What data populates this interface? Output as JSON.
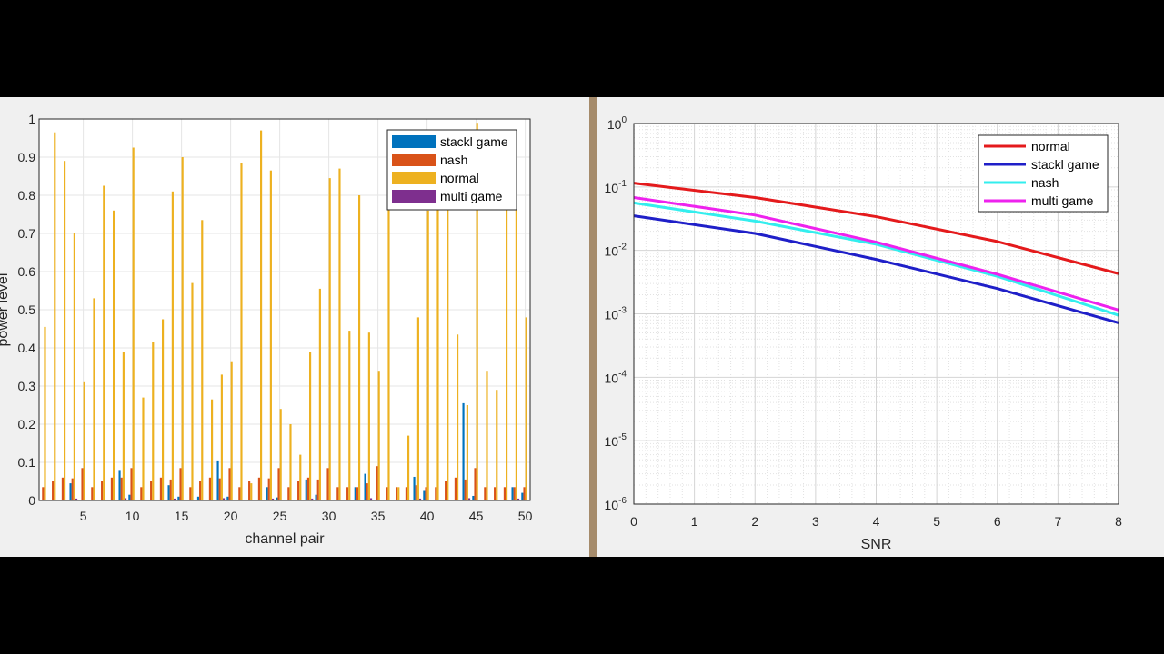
{
  "chart_data": [
    {
      "type": "bar",
      "xlabel": "channel pair",
      "ylabel": "power level",
      "ylim": [
        0,
        1
      ],
      "xlim": [
        0.5,
        50.5
      ],
      "xticks": [
        "5",
        "10",
        "15",
        "20",
        "25",
        "30",
        "35",
        "40",
        "45",
        "50"
      ],
      "yticks": [
        "0",
        "0.1",
        "0.2",
        "0.3",
        "0.4",
        "0.5",
        "0.6",
        "0.7",
        "0.8",
        "0.9",
        "1"
      ],
      "grid": true,
      "legend_position": "top-right",
      "categories": [
        1,
        2,
        3,
        4,
        5,
        6,
        7,
        8,
        9,
        10,
        11,
        12,
        13,
        14,
        15,
        16,
        17,
        18,
        19,
        20,
        21,
        22,
        23,
        24,
        25,
        26,
        27,
        28,
        29,
        30,
        31,
        32,
        33,
        34,
        35,
        36,
        37,
        38,
        39,
        40,
        41,
        42,
        43,
        44,
        45,
        46,
        47,
        48,
        49,
        50
      ],
      "series": [
        {
          "name": "stackl game",
          "color": "#0072BD",
          "values": [
            0,
            0,
            0,
            0.045,
            0,
            0,
            0,
            0,
            0.08,
            0.015,
            0,
            0,
            0,
            0.04,
            0.01,
            0,
            0.01,
            0,
            0.105,
            0.01,
            0,
            0,
            0,
            0.035,
            0.008,
            0,
            0,
            0.055,
            0.015,
            0,
            0,
            0,
            0.035,
            0.07,
            0,
            0,
            0,
            0,
            0.062,
            0.025,
            0,
            0,
            0,
            0.255,
            0.012,
            0,
            0,
            0,
            0.035,
            0.02
          ]
        },
        {
          "name": "nash",
          "color": "#D95319",
          "values": [
            0.035,
            0.05,
            0.06,
            0.058,
            0.085,
            0.035,
            0.05,
            0.06,
            0.06,
            0.085,
            0.035,
            0.05,
            0.06,
            0.055,
            0.085,
            0.035,
            0.05,
            0.06,
            0.058,
            0.085,
            0.035,
            0.05,
            0.06,
            0.058,
            0.085,
            0.035,
            0.05,
            0.06,
            0.055,
            0.085,
            0.035,
            0.035,
            0.035,
            0.045,
            0.09,
            0.035,
            0.035,
            0.035,
            0.04,
            0.035,
            0.035,
            0.05,
            0.06,
            0.055,
            0.085,
            0.035,
            0.035,
            0.035,
            0.035,
            0.035
          ]
        },
        {
          "name": "normal",
          "color": "#EDB120",
          "values": [
            0.455,
            0.965,
            0.89,
            0.7,
            0.31,
            0.53,
            0.825,
            0.76,
            0.39,
            0.925,
            0.27,
            0.415,
            0.475,
            0.81,
            0.9,
            0.57,
            0.735,
            0.265,
            0.33,
            0.365,
            0.885,
            0.045,
            0.97,
            0.865,
            0.24,
            0.2,
            0.12,
            0.39,
            0.555,
            0.845,
            0.87,
            0.445,
            0.8,
            0.44,
            0.34,
            0.82,
            0.035,
            0.17,
            0.48,
            0.76,
            0.77,
            0.78,
            0.435,
            0.25,
            0.99,
            0.34,
            0.29,
            0.8,
            0.79,
            0.48
          ]
        },
        {
          "name": "multi game",
          "color": "#7E2F8E",
          "values": [
            0,
            0,
            0,
            0.005,
            0,
            0,
            0,
            0,
            0.006,
            0,
            0,
            0,
            0,
            0.005,
            0,
            0,
            0,
            0,
            0.006,
            0,
            0,
            0,
            0,
            0.005,
            0,
            0,
            0,
            0.005,
            0,
            0,
            0,
            0,
            0,
            0.006,
            0,
            0,
            0,
            0,
            0.005,
            0,
            0,
            0,
            0,
            0.006,
            0,
            0,
            0,
            0,
            0.005,
            0
          ]
        }
      ]
    },
    {
      "type": "line",
      "xlabel": "SNR",
      "ylabel": "",
      "yscale": "log",
      "xlim": [
        0,
        8
      ],
      "ylim": [
        1e-06,
        1
      ],
      "xticks": [
        "0",
        "1",
        "2",
        "3",
        "4",
        "5",
        "6",
        "7",
        "8"
      ],
      "yticks_base": "10",
      "yticks_exp": [
        "0",
        "-1",
        "-2",
        "-3",
        "-4",
        "-5",
        "-6"
      ],
      "grid": true,
      "legend_position": "top-right",
      "x": [
        0,
        2,
        4,
        6,
        8
      ],
      "series": [
        {
          "name": "normal",
          "color": "#E41A1C",
          "values": [
            0.115,
            0.068,
            0.034,
            0.0138,
            0.0043
          ]
        },
        {
          "name": "stackl game",
          "color": "#1F1FC8",
          "values": [
            0.035,
            0.0185,
            0.0072,
            0.0025,
            0.00072
          ]
        },
        {
          "name": "nash",
          "color": "#33EEEE",
          "values": [
            0.056,
            0.029,
            0.0125,
            0.0039,
            0.00095
          ]
        },
        {
          "name": "multi game",
          "color": "#EE22EE",
          "values": [
            0.068,
            0.036,
            0.0135,
            0.0042,
            0.00115
          ]
        }
      ]
    }
  ]
}
